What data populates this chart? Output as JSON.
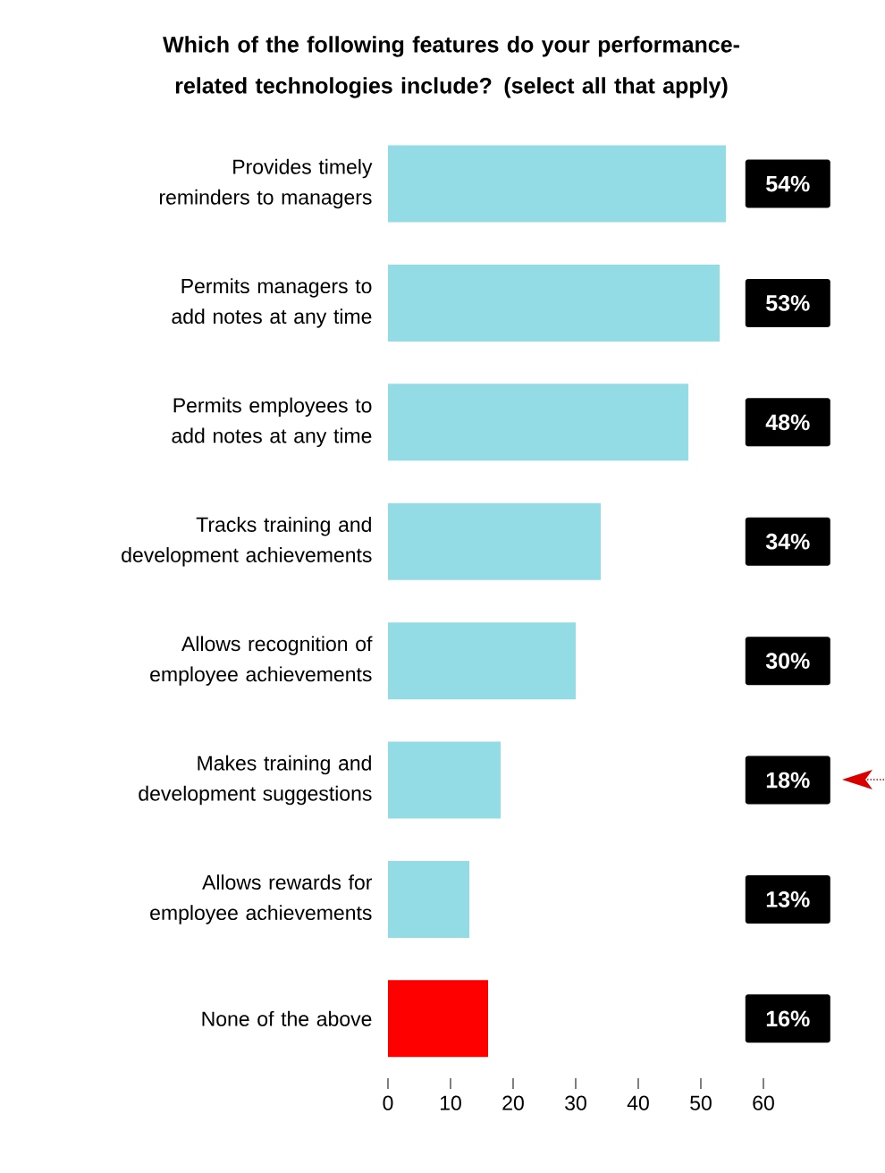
{
  "chart_data": {
    "type": "bar",
    "orientation": "horizontal",
    "title": "Which of the following features do your performance-related technologies include? (select all that apply)",
    "categories": [
      "Provides timely reminders to managers",
      "Permits managers to add notes at any time",
      "Permits employees to add notes at any time",
      "Tracks training and development achievements",
      "Allows recognition of employee achievements",
      "Makes training and development suggestions",
      "Allows rewards for employee achievements",
      "None of the above"
    ],
    "values": [
      54,
      53,
      48,
      34,
      30,
      18,
      13,
      16
    ],
    "colors": [
      "#93dbe5",
      "#93dbe5",
      "#93dbe5",
      "#93dbe5",
      "#93dbe5",
      "#93dbe5",
      "#93dbe5",
      "#ff0000"
    ],
    "value_labels": [
      "54%",
      "53%",
      "48%",
      "34%",
      "30%",
      "18%",
      "13%",
      "16%"
    ],
    "xlim": [
      0,
      60
    ],
    "xticks": [
      0,
      10,
      20,
      30,
      40,
      50,
      60
    ]
  }
}
